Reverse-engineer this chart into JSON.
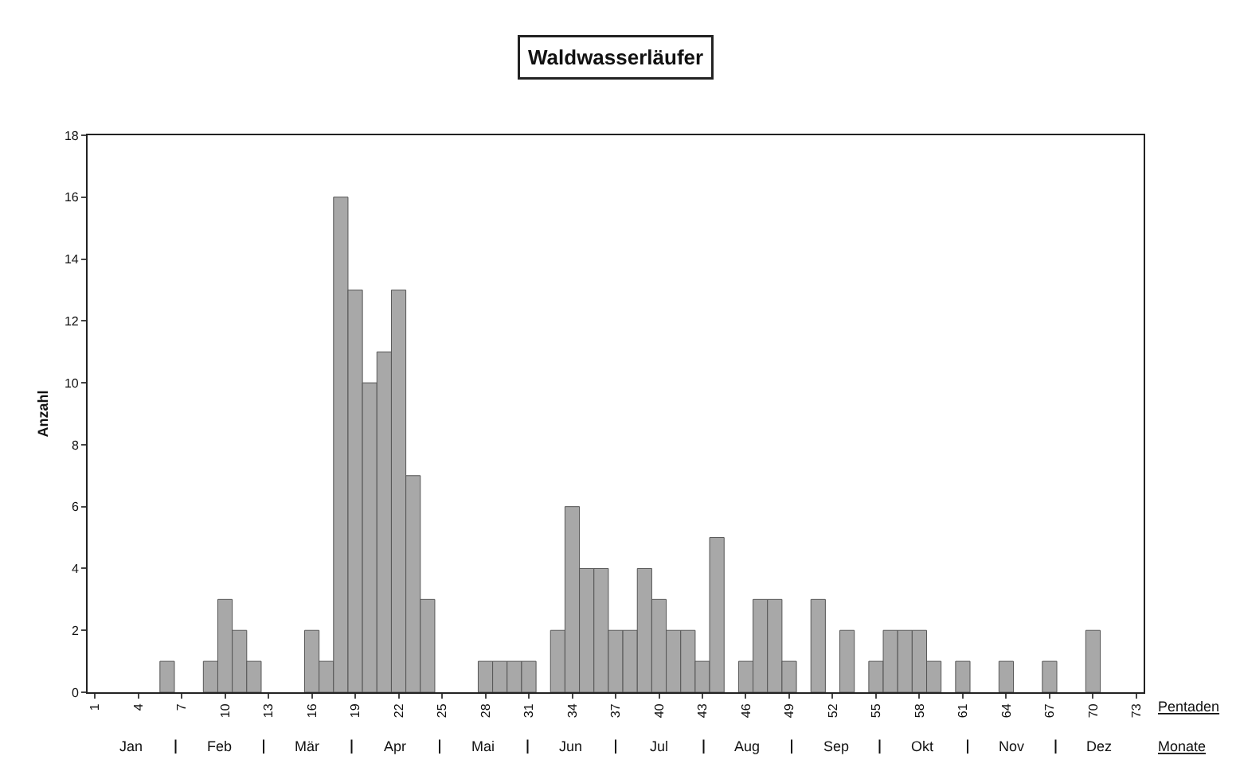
{
  "chart_data": {
    "type": "bar",
    "title": "Waldwasserläufer",
    "ylabel": "Anzahl",
    "xlabel": "Pentaden",
    "annotations": [
      "Jan",
      "Feb",
      "Mär",
      "Apr",
      "Mai",
      "Jun",
      "Jul",
      "Aug",
      "Sep",
      "Okt",
      "Nov",
      "Dez",
      "Monate"
    ],
    "x": [
      1,
      2,
      3,
      4,
      5,
      6,
      7,
      8,
      9,
      10,
      11,
      12,
      13,
      14,
      15,
      16,
      17,
      18,
      19,
      20,
      21,
      22,
      23,
      24,
      25,
      26,
      27,
      28,
      29,
      30,
      31,
      32,
      33,
      34,
      35,
      36,
      37,
      38,
      39,
      40,
      41,
      42,
      43,
      44,
      45,
      46,
      47,
      48,
      49,
      50,
      51,
      52,
      53,
      54,
      55,
      56,
      57,
      58,
      59,
      60,
      61,
      62,
      63,
      64,
      65,
      66,
      67,
      68,
      69,
      70,
      71,
      72,
      73
    ],
    "values": [
      0,
      0,
      0,
      0,
      0,
      1,
      0,
      0,
      1,
      3,
      2,
      1,
      0,
      0,
      0,
      2,
      1,
      16,
      13,
      10,
      11,
      13,
      7,
      3,
      0,
      0,
      0,
      1,
      1,
      1,
      1,
      0,
      2,
      6,
      4,
      4,
      2,
      2,
      4,
      3,
      2,
      2,
      1,
      5,
      0,
      1,
      3,
      3,
      1,
      0,
      3,
      0,
      2,
      0,
      1,
      2,
      2,
      2,
      1,
      0,
      1,
      0,
      0,
      1,
      0,
      0,
      1,
      0,
      0,
      2,
      0,
      0,
      0
    ],
    "color": "#a8a8a8",
    "xlim": [
      0.5,
      73.5
    ],
    "xticks": [
      1,
      4,
      7,
      10,
      13,
      16,
      19,
      22,
      25,
      28,
      31,
      34,
      37,
      40,
      43,
      46,
      49,
      52,
      55,
      58,
      61,
      64,
      67,
      70,
      73
    ],
    "ylim": [
      0,
      18
    ],
    "yticks": [
      0,
      2,
      4,
      6,
      8,
      10,
      12,
      14,
      16,
      18
    ],
    "grid": false
  }
}
